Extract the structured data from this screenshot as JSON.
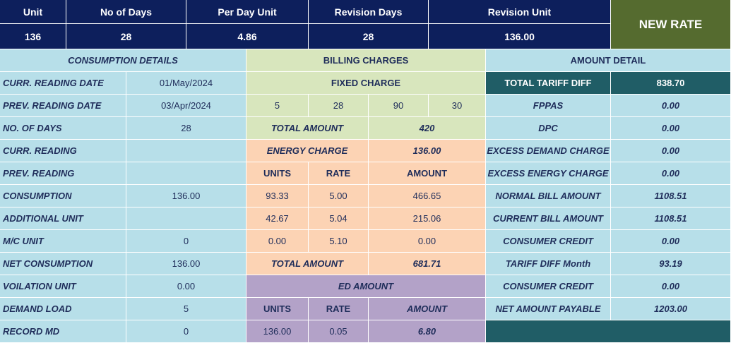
{
  "header": {
    "labels": [
      "Unit",
      "No of Days",
      "Per Day Unit",
      "Revision Days",
      "Revision Unit"
    ],
    "values": [
      "136",
      "28",
      "4.86",
      "28",
      "136.00"
    ],
    "new_rate": "NEW RATE"
  },
  "consumption": {
    "title": "CONSUMPTION DETAILS",
    "rows": [
      {
        "label": "CURR. READING DATE",
        "value": "01/May/2024"
      },
      {
        "label": "PREV. READING DATE",
        "value": "03/Apr/2024"
      },
      {
        "label": "NO. OF DAYS",
        "value": "28"
      },
      {
        "label": "CURR. READING",
        "value": ""
      },
      {
        "label": "PREV. READING",
        "value": ""
      },
      {
        "label": "CONSUMPTION",
        "value": "136.00"
      },
      {
        "label": "ADDITIONAL UNIT",
        "value": ""
      },
      {
        "label": "M/C UNIT",
        "value": "0"
      },
      {
        "label": "NET CONSUMPTION",
        "value": "136.00"
      },
      {
        "label": "VOILATION UNIT",
        "value": "0.00"
      },
      {
        "label": "DEMAND LOAD",
        "value": "5"
      },
      {
        "label": "RECORD MD",
        "value": "0"
      }
    ]
  },
  "billing": {
    "title": "BILLING CHARGES",
    "fixed_charge_title": "FIXED CHARGE",
    "fixed_values": [
      "5",
      "28",
      "90",
      "30"
    ],
    "fixed_total_label": "TOTAL AMOUNT",
    "fixed_total_value": "420",
    "energy_charge_label": "ENERGY CHARGE",
    "energy_charge_value": "136.00",
    "energy_headers": [
      "UNITS",
      "RATE",
      "AMOUNT"
    ],
    "energy_rows": [
      [
        "93.33",
        "5.00",
        "466.65"
      ],
      [
        "42.67",
        "5.04",
        "215.06"
      ],
      [
        "0.00",
        "5.10",
        "0.00"
      ]
    ],
    "energy_total_label": "TOTAL AMOUNT",
    "energy_total_value": "681.71",
    "ed_title": "ED AMOUNT",
    "ed_headers": [
      "UNITS",
      "RATE",
      "AMOUNT"
    ],
    "ed_row": [
      "136.00",
      "0.05",
      "6.80"
    ]
  },
  "amount": {
    "title": "AMOUNT DETAIL",
    "rows": [
      {
        "label": "TOTAL TARIFF DIFF",
        "value": "838.70"
      },
      {
        "label": "FPPAS",
        "value": "0.00"
      },
      {
        "label": "DPC",
        "value": "0.00"
      },
      {
        "label": "EXCESS DEMAND CHARGE",
        "value": "0.00"
      },
      {
        "label": "EXCESS ENERGY CHARGE",
        "value": "0.00"
      },
      {
        "label": "NORMAL BILL AMOUNT",
        "value": "1108.51"
      },
      {
        "label": "CURRENT BILL AMOUNT",
        "value": "1108.51"
      },
      {
        "label": "CONSUMER CREDIT",
        "value": "0.00"
      },
      {
        "label": "TARIFF DIFF Month",
        "value": "93.19"
      },
      {
        "label": "CONSUMER CREDIT",
        "value": "0.00"
      },
      {
        "label": "NET AMOUNT PAYABLE",
        "value": "1203.00"
      }
    ]
  },
  "colors": {
    "header": "#0d1f5c",
    "new_rate": "#556b2f",
    "blue": "#b7dfe9",
    "green": "#d8e6bd",
    "peach": "#fcd3b4",
    "purple": "#b3a2c8",
    "teal": "#205d66"
  }
}
